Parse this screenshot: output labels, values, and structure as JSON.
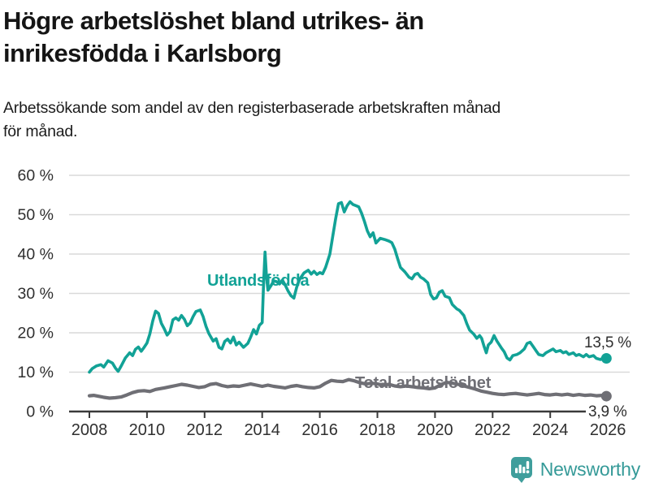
{
  "header": {
    "title_lines": [
      "Högre arbetslöshet bland utrikes- än",
      "inrikesfödda i Karlsborg"
    ],
    "subtitle_lines": [
      "Arbetssökande som andel av den registerbaserade arbetskraften månad",
      "för månad."
    ]
  },
  "footer": {
    "brand": "Newsworthy"
  },
  "colors": {
    "accent_teal": "#12a296",
    "series_gray": "#6f6f75",
    "grid": "#d9d9d9",
    "axis": "#3a3a3a",
    "tick_text": "#2f2f2f",
    "end_label_text": "#2e2e2e",
    "brand_teal": "#359a98"
  },
  "chart_data": {
    "type": "line",
    "title": "Högre arbetslöshet bland utrikes- än inrikesfödda i Karlsborg",
    "xlabel": "",
    "ylabel": "",
    "ylim": [
      0,
      60
    ],
    "xlim": [
      2007.3,
      2026.8
    ],
    "grid": "horizontal",
    "legend_position": "inline-labels",
    "yticks": [
      {
        "v": 0,
        "label": "0 %"
      },
      {
        "v": 10,
        "label": "10 %"
      },
      {
        "v": 20,
        "label": "20 %"
      },
      {
        "v": 30,
        "label": "30 %"
      },
      {
        "v": 40,
        "label": "40 %"
      },
      {
        "v": 50,
        "label": "50 %"
      },
      {
        "v": 60,
        "label": "60 %"
      }
    ],
    "xticks": [
      {
        "v": 2008,
        "label": "2008"
      },
      {
        "v": 2010,
        "label": "2010"
      },
      {
        "v": 2012,
        "label": "2012"
      },
      {
        "v": 2014,
        "label": "2014"
      },
      {
        "v": 2016,
        "label": "2016"
      },
      {
        "v": 2018,
        "label": "2018"
      },
      {
        "v": 2020,
        "label": "2020"
      },
      {
        "v": 2022,
        "label": "2022"
      },
      {
        "v": 2024,
        "label": "2024"
      },
      {
        "v": 2026,
        "label": "2026"
      }
    ],
    "series": [
      {
        "name": "Utlandsfödda",
        "color": "#12a296",
        "end_label": "13,5 %",
        "end_value": 13.5,
        "line_width": 3.6,
        "points": [
          [
            2008.0,
            10.0
          ],
          [
            2008.1,
            10.9
          ],
          [
            2008.25,
            11.6
          ],
          [
            2008.4,
            11.9
          ],
          [
            2008.5,
            11.3
          ],
          [
            2008.65,
            12.9
          ],
          [
            2008.8,
            12.3
          ],
          [
            2008.9,
            11.1
          ],
          [
            2009.0,
            10.2
          ],
          [
            2009.1,
            11.5
          ],
          [
            2009.25,
            13.6
          ],
          [
            2009.4,
            14.9
          ],
          [
            2009.5,
            14.2
          ],
          [
            2009.6,
            15.8
          ],
          [
            2009.7,
            16.4
          ],
          [
            2009.8,
            15.3
          ],
          [
            2009.9,
            16.3
          ],
          [
            2010.0,
            17.4
          ],
          [
            2010.1,
            19.7
          ],
          [
            2010.2,
            23.0
          ],
          [
            2010.3,
            25.5
          ],
          [
            2010.4,
            24.9
          ],
          [
            2010.5,
            22.4
          ],
          [
            2010.6,
            21.0
          ],
          [
            2010.7,
            19.4
          ],
          [
            2010.8,
            20.3
          ],
          [
            2010.9,
            23.3
          ],
          [
            2011.0,
            23.8
          ],
          [
            2011.1,
            23.2
          ],
          [
            2011.2,
            24.4
          ],
          [
            2011.3,
            23.4
          ],
          [
            2011.4,
            21.8
          ],
          [
            2011.5,
            22.5
          ],
          [
            2011.6,
            24.1
          ],
          [
            2011.7,
            25.4
          ],
          [
            2011.85,
            25.8
          ],
          [
            2011.95,
            24.1
          ],
          [
            2012.05,
            21.6
          ],
          [
            2012.15,
            19.8
          ],
          [
            2012.3,
            17.9
          ],
          [
            2012.4,
            18.5
          ],
          [
            2012.5,
            16.3
          ],
          [
            2012.6,
            15.9
          ],
          [
            2012.7,
            17.8
          ],
          [
            2012.8,
            18.4
          ],
          [
            2012.9,
            17.4
          ],
          [
            2013.0,
            18.9
          ],
          [
            2013.1,
            16.9
          ],
          [
            2013.2,
            17.6
          ],
          [
            2013.35,
            16.3
          ],
          [
            2013.5,
            17.3
          ],
          [
            2013.6,
            18.9
          ],
          [
            2013.7,
            20.8
          ],
          [
            2013.8,
            19.7
          ],
          [
            2013.9,
            21.9
          ],
          [
            2014.0,
            22.6
          ],
          [
            2014.05,
            33.0
          ],
          [
            2014.1,
            40.5
          ],
          [
            2014.15,
            34.2
          ],
          [
            2014.2,
            30.8
          ],
          [
            2014.3,
            31.9
          ],
          [
            2014.4,
            33.2
          ],
          [
            2014.5,
            33.0
          ],
          [
            2014.6,
            32.4
          ],
          [
            2014.7,
            33.4
          ],
          [
            2014.8,
            32.1
          ],
          [
            2014.9,
            30.6
          ],
          [
            2015.0,
            29.4
          ],
          [
            2015.1,
            28.8
          ],
          [
            2015.2,
            31.6
          ],
          [
            2015.3,
            33.6
          ],
          [
            2015.45,
            35.2
          ],
          [
            2015.6,
            35.9
          ],
          [
            2015.7,
            34.9
          ],
          [
            2015.8,
            35.6
          ],
          [
            2015.9,
            34.8
          ],
          [
            2016.0,
            35.3
          ],
          [
            2016.1,
            35.0
          ],
          [
            2016.2,
            36.6
          ],
          [
            2016.35,
            40.0
          ],
          [
            2016.45,
            44.6
          ],
          [
            2016.55,
            49.0
          ],
          [
            2016.65,
            52.8
          ],
          [
            2016.75,
            53.1
          ],
          [
            2016.85,
            50.7
          ],
          [
            2016.95,
            52.3
          ],
          [
            2017.05,
            53.3
          ],
          [
            2017.15,
            52.6
          ],
          [
            2017.25,
            52.3
          ],
          [
            2017.35,
            52.0
          ],
          [
            2017.45,
            50.4
          ],
          [
            2017.55,
            48.3
          ],
          [
            2017.65,
            45.9
          ],
          [
            2017.75,
            44.4
          ],
          [
            2017.85,
            45.4
          ],
          [
            2017.95,
            42.8
          ],
          [
            2018.1,
            44.0
          ],
          [
            2018.25,
            43.7
          ],
          [
            2018.4,
            43.3
          ],
          [
            2018.5,
            42.9
          ],
          [
            2018.6,
            41.3
          ],
          [
            2018.7,
            38.9
          ],
          [
            2018.8,
            36.6
          ],
          [
            2018.95,
            35.5
          ],
          [
            2019.1,
            34.1
          ],
          [
            2019.2,
            33.7
          ],
          [
            2019.3,
            34.8
          ],
          [
            2019.4,
            35.1
          ],
          [
            2019.5,
            34.1
          ],
          [
            2019.6,
            33.7
          ],
          [
            2019.75,
            32.7
          ],
          [
            2019.85,
            29.7
          ],
          [
            2019.95,
            28.6
          ],
          [
            2020.05,
            28.9
          ],
          [
            2020.15,
            30.3
          ],
          [
            2020.25,
            30.7
          ],
          [
            2020.35,
            29.3
          ],
          [
            2020.5,
            28.9
          ],
          [
            2020.6,
            27.2
          ],
          [
            2020.75,
            26.1
          ],
          [
            2020.85,
            25.7
          ],
          [
            2021.0,
            24.4
          ],
          [
            2021.1,
            22.4
          ],
          [
            2021.2,
            20.7
          ],
          [
            2021.35,
            19.6
          ],
          [
            2021.45,
            18.6
          ],
          [
            2021.55,
            19.3
          ],
          [
            2021.62,
            18.6
          ],
          [
            2021.7,
            16.6
          ],
          [
            2021.78,
            14.9
          ],
          [
            2021.85,
            16.9
          ],
          [
            2021.95,
            17.6
          ],
          [
            2022.05,
            19.3
          ],
          [
            2022.15,
            17.9
          ],
          [
            2022.3,
            16.2
          ],
          [
            2022.4,
            15.2
          ],
          [
            2022.5,
            13.6
          ],
          [
            2022.6,
            13.1
          ],
          [
            2022.7,
            14.2
          ],
          [
            2022.85,
            14.5
          ],
          [
            2022.95,
            14.9
          ],
          [
            2023.1,
            15.9
          ],
          [
            2023.2,
            17.3
          ],
          [
            2023.3,
            17.6
          ],
          [
            2023.4,
            16.6
          ],
          [
            2023.5,
            15.5
          ],
          [
            2023.6,
            14.5
          ],
          [
            2023.75,
            14.2
          ],
          [
            2023.85,
            14.9
          ],
          [
            2024.0,
            15.5
          ],
          [
            2024.1,
            15.9
          ],
          [
            2024.2,
            15.2
          ],
          [
            2024.35,
            15.5
          ],
          [
            2024.45,
            14.9
          ],
          [
            2024.55,
            15.2
          ],
          [
            2024.65,
            14.5
          ],
          [
            2024.8,
            14.9
          ],
          [
            2024.9,
            14.2
          ],
          [
            2025.0,
            14.5
          ],
          [
            2025.15,
            13.9
          ],
          [
            2025.25,
            14.5
          ],
          [
            2025.35,
            13.9
          ],
          [
            2025.5,
            14.2
          ],
          [
            2025.6,
            13.5
          ],
          [
            2025.75,
            13.2
          ],
          [
            2025.85,
            13.8
          ],
          [
            2025.95,
            13.5
          ]
        ]
      },
      {
        "name": "Total arbetslöshet",
        "color": "#6f6f75",
        "end_label": "3,9 %",
        "end_value": 3.9,
        "line_width": 4.2,
        "points": [
          [
            2008.0,
            4.0
          ],
          [
            2008.15,
            4.1
          ],
          [
            2008.3,
            3.9
          ],
          [
            2008.5,
            3.6
          ],
          [
            2008.7,
            3.4
          ],
          [
            2008.9,
            3.5
          ],
          [
            2009.1,
            3.7
          ],
          [
            2009.3,
            4.2
          ],
          [
            2009.5,
            4.8
          ],
          [
            2009.7,
            5.2
          ],
          [
            2009.9,
            5.3
          ],
          [
            2010.1,
            5.1
          ],
          [
            2010.3,
            5.6
          ],
          [
            2010.6,
            6.0
          ],
          [
            2010.8,
            6.3
          ],
          [
            2011.0,
            6.6
          ],
          [
            2011.2,
            6.9
          ],
          [
            2011.4,
            6.7
          ],
          [
            2011.6,
            6.4
          ],
          [
            2011.8,
            6.1
          ],
          [
            2012.0,
            6.3
          ],
          [
            2012.2,
            6.9
          ],
          [
            2012.4,
            7.1
          ],
          [
            2012.6,
            6.6
          ],
          [
            2012.8,
            6.3
          ],
          [
            2013.0,
            6.5
          ],
          [
            2013.2,
            6.4
          ],
          [
            2013.4,
            6.7
          ],
          [
            2013.6,
            7.0
          ],
          [
            2013.8,
            6.7
          ],
          [
            2014.0,
            6.4
          ],
          [
            2014.2,
            6.7
          ],
          [
            2014.4,
            6.4
          ],
          [
            2014.6,
            6.2
          ],
          [
            2014.8,
            6.0
          ],
          [
            2015.0,
            6.4
          ],
          [
            2015.2,
            6.6
          ],
          [
            2015.4,
            6.3
          ],
          [
            2015.6,
            6.1
          ],
          [
            2015.8,
            6.0
          ],
          [
            2016.0,
            6.3
          ],
          [
            2016.2,
            7.2
          ],
          [
            2016.4,
            7.9
          ],
          [
            2016.6,
            7.7
          ],
          [
            2016.8,
            7.6
          ],
          [
            2017.0,
            8.1
          ],
          [
            2017.2,
            7.8
          ],
          [
            2017.4,
            7.3
          ],
          [
            2017.6,
            7.0
          ],
          [
            2017.8,
            7.2
          ],
          [
            2018.0,
            7.0
          ],
          [
            2018.2,
            6.7
          ],
          [
            2018.4,
            6.9
          ],
          [
            2018.6,
            6.5
          ],
          [
            2018.8,
            6.3
          ],
          [
            2019.0,
            6.5
          ],
          [
            2019.2,
            6.3
          ],
          [
            2019.4,
            6.1
          ],
          [
            2019.6,
            6.0
          ],
          [
            2019.8,
            5.8
          ],
          [
            2020.0,
            6.0
          ],
          [
            2020.2,
            6.8
          ],
          [
            2020.4,
            7.4
          ],
          [
            2020.6,
            7.2
          ],
          [
            2020.8,
            6.9
          ],
          [
            2021.0,
            6.5
          ],
          [
            2021.2,
            6.1
          ],
          [
            2021.4,
            5.7
          ],
          [
            2021.6,
            5.2
          ],
          [
            2021.8,
            4.9
          ],
          [
            2022.0,
            4.6
          ],
          [
            2022.2,
            4.4
          ],
          [
            2022.4,
            4.3
          ],
          [
            2022.6,
            4.5
          ],
          [
            2022.8,
            4.6
          ],
          [
            2023.0,
            4.4
          ],
          [
            2023.2,
            4.2
          ],
          [
            2023.4,
            4.4
          ],
          [
            2023.6,
            4.6
          ],
          [
            2023.8,
            4.3
          ],
          [
            2024.0,
            4.2
          ],
          [
            2024.2,
            4.4
          ],
          [
            2024.4,
            4.2
          ],
          [
            2024.6,
            4.4
          ],
          [
            2024.8,
            4.1
          ],
          [
            2025.0,
            4.3
          ],
          [
            2025.2,
            4.1
          ],
          [
            2025.4,
            4.2
          ],
          [
            2025.6,
            4.0
          ],
          [
            2025.8,
            4.1
          ],
          [
            2025.95,
            3.9
          ]
        ]
      }
    ]
  }
}
